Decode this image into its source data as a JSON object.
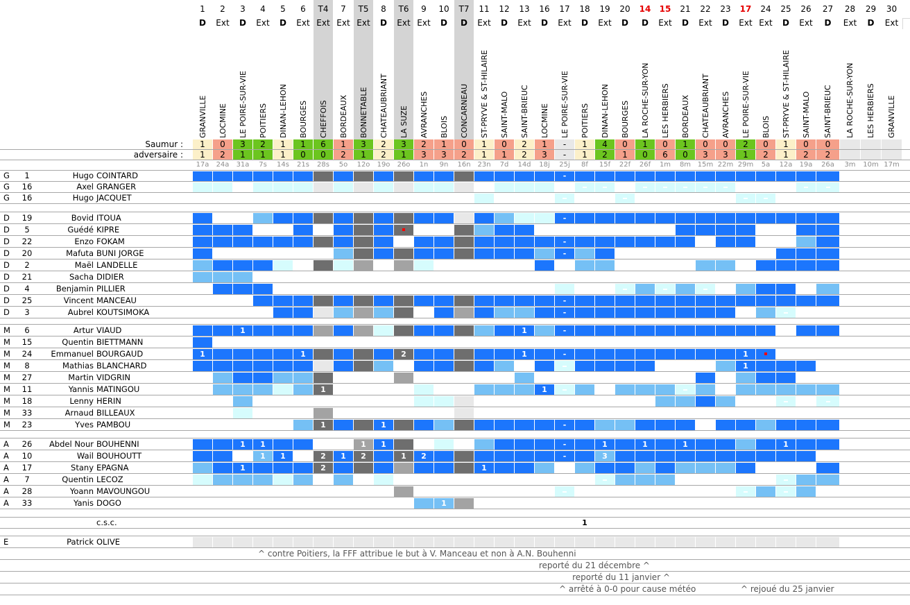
{
  "header": {
    "saumur_label": "Saumur :",
    "adversaire_label": "adversaire :"
  },
  "colors": {
    "cell": {
      "B": "#1c76fd",
      "L": "#75c0f5",
      "C": "#d6fcfd",
      "c": "#d6fcfd",
      "G": "#6e6e6e",
      "M": "#a3a3a3",
      "E": "#e8e8e8",
      ".": "#ffffff"
    },
    "result": {
      "win": "#6cc51f",
      "draw": "#fcf0c9",
      "loss": "#f5a08a",
      "none": "#e8e8e8"
    },
    "cup_header": "#d4d4d4",
    "highlight_number": "#e60000"
  },
  "matches": [
    {
      "number": "1",
      "venue": "D",
      "opponent": "GRANVILLE",
      "saumur": "1",
      "adversaire": "1",
      "result": "draw",
      "date": "17a"
    },
    {
      "number": "2",
      "venue": "Ext",
      "opponent": "LOCMINE",
      "saumur": "0",
      "adversaire": "2",
      "result": "loss",
      "date": "24a"
    },
    {
      "number": "3",
      "venue": "D",
      "opponent": "LE POIRE-SUR-VIE",
      "saumur": "3",
      "adversaire": "1",
      "result": "win",
      "date": "31a"
    },
    {
      "number": "4",
      "venue": "Ext",
      "opponent": "POITIERS",
      "saumur": "2",
      "adversaire": "1",
      "result": "win",
      "date": "7s"
    },
    {
      "number": "5",
      "venue": "D",
      "opponent": "DINAN-LEHON",
      "saumur": "1",
      "adversaire": "1",
      "result": "draw",
      "date": "14s"
    },
    {
      "number": "6",
      "venue": "Ext",
      "opponent": "BOURGES",
      "saumur": "1",
      "adversaire": "0",
      "result": "win",
      "date": "21s"
    },
    {
      "number": "T4",
      "venue": "Ext",
      "opponent": "CHEFFOIS",
      "saumur": "6",
      "adversaire": "0",
      "result": "win",
      "date": "28s",
      "cup": true
    },
    {
      "number": "7",
      "venue": "Ext",
      "opponent": "BORDEAUX",
      "saumur": "1",
      "adversaire": "2",
      "result": "loss",
      "date": "5o"
    },
    {
      "number": "T5",
      "venue": "Ext",
      "opponent": "BONNETABLE",
      "saumur": "3",
      "adversaire": "1",
      "result": "win",
      "date": "12o",
      "cup": true
    },
    {
      "number": "8",
      "venue": "D",
      "opponent": "CHATEAUBRIANT",
      "saumur": "2",
      "adversaire": "2",
      "result": "draw",
      "date": "19o"
    },
    {
      "number": "T6",
      "venue": "Ext",
      "opponent": "LA SUZE",
      "saumur": "3",
      "adversaire": "1",
      "result": "win",
      "date": "26o",
      "cup": true
    },
    {
      "number": "9",
      "venue": "Ext",
      "opponent": "AVRANCHES",
      "saumur": "2",
      "adversaire": "3",
      "result": "loss",
      "date": "1n"
    },
    {
      "number": "10",
      "venue": "D",
      "opponent": "BLOIS",
      "saumur": "1",
      "adversaire": "3",
      "result": "loss",
      "date": "9n"
    },
    {
      "number": "T7",
      "venue": "D",
      "opponent": "CONCARNEAU",
      "saumur": "0",
      "adversaire": "2",
      "result": "loss",
      "date": "16n",
      "cup": true
    },
    {
      "number": "11",
      "venue": "Ext",
      "opponent": "ST-PRYVE & ST-HILAIRE",
      "saumur": "1",
      "adversaire": "1",
      "result": "draw",
      "date": "23n"
    },
    {
      "number": "12",
      "venue": "D",
      "opponent": "SAINT-MALO",
      "saumur": "0",
      "adversaire": "1",
      "result": "loss",
      "date": "7d"
    },
    {
      "number": "13",
      "venue": "Ext",
      "opponent": "SAINT-BRIEUC",
      "saumur": "2",
      "adversaire": "2",
      "result": "draw",
      "date": "14d"
    },
    {
      "number": "16",
      "venue": "D",
      "opponent": "LOCMINE",
      "saumur": "1",
      "adversaire": "3",
      "result": "loss",
      "date": "18j"
    },
    {
      "number": "17",
      "venue": "Ext",
      "opponent": "LE POIRE-SUR-VIE",
      "saumur": "-",
      "adversaire": "-",
      "result": "none",
      "date": "25j"
    },
    {
      "number": "18",
      "venue": "D",
      "opponent": "POITIERS",
      "saumur": "1",
      "adversaire": "1",
      "result": "draw",
      "date": "8f"
    },
    {
      "number": "19",
      "venue": "Ext",
      "opponent": "DINAN-LEHON",
      "saumur": "4",
      "adversaire": "2",
      "result": "win",
      "date": "15f"
    },
    {
      "number": "20",
      "venue": "D",
      "opponent": "BOURGES",
      "saumur": "0",
      "adversaire": "1",
      "result": "loss",
      "date": "22f"
    },
    {
      "number": "14",
      "venue": "D",
      "opponent": "LA ROCHE-SUR-YON",
      "saumur": "1",
      "adversaire": "0",
      "result": "win",
      "date": "26f",
      "highlight": true
    },
    {
      "number": "15",
      "venue": "Ext",
      "opponent": "LES HERBIERS",
      "saumur": "0",
      "adversaire": "6",
      "result": "loss",
      "date": "1m",
      "highlight": true
    },
    {
      "number": "21",
      "venue": "D",
      "opponent": "BORDEAUX",
      "saumur": "1",
      "adversaire": "0",
      "result": "win",
      "date": "8m"
    },
    {
      "number": "22",
      "venue": "Ext",
      "opponent": "CHATEAUBRIANT",
      "saumur": "0",
      "adversaire": "3",
      "result": "loss",
      "date": "15m"
    },
    {
      "number": "23",
      "venue": "D",
      "opponent": "AVRANCHES",
      "saumur": "0",
      "adversaire": "3",
      "result": "loss",
      "date": "22m"
    },
    {
      "number": "17",
      "venue": "Ext",
      "opponent": "LE POIRE-SUR-VIE",
      "saumur": "2",
      "adversaire": "1",
      "result": "win",
      "date": "29m",
      "highlight": true
    },
    {
      "number": "24",
      "venue": "Ext",
      "opponent": "BLOIS",
      "saumur": "0",
      "adversaire": "2",
      "result": "loss",
      "date": "5a"
    },
    {
      "number": "25",
      "venue": "D",
      "opponent": "ST-PRYVE & ST-HILAIRE",
      "saumur": "1",
      "adversaire": "1",
      "result": "draw",
      "date": "12a"
    },
    {
      "number": "26",
      "venue": "Ext",
      "opponent": "SAINT-MALO",
      "saumur": "0",
      "adversaire": "2",
      "result": "loss",
      "date": "19a"
    },
    {
      "number": "27",
      "venue": "D",
      "opponent": "SAINT-BRIEUC",
      "saumur": "0",
      "adversaire": "2",
      "result": "loss",
      "date": "26a"
    },
    {
      "number": "28",
      "venue": "Ext",
      "opponent": "LA ROCHE-SUR-YON",
      "saumur": "",
      "adversaire": "",
      "result": "none",
      "date": "3m"
    },
    {
      "number": "29",
      "venue": "D",
      "opponent": "LES HERBIERS",
      "saumur": "",
      "adversaire": "",
      "result": "none",
      "date": "10m"
    },
    {
      "number": "30",
      "venue": "Ext",
      "opponent": "GRANVILLE",
      "saumur": "",
      "adversaire": "",
      "result": "none",
      "date": "17m"
    }
  ],
  "squad": {
    "sections": [
      {
        "players": [
          {
            "pos": "G",
            "num": "1",
            "first": "Hugo",
            "last": "COINTARD",
            "cells": "BBBBB BGBGB GBBGB BBBBB BBBBB BBBBB BB...",
            "marks": {
              "18": "-"
            }
          },
          {
            "pos": "G",
            "num": "16",
            "first": "Axel",
            "last": "GRANGER",
            "cells": "CC.CC CECEC ECCE. CCC.c c.ccc cc... cc..."
          },
          {
            "pos": "G",
            "num": "16",
            "first": "Hugo",
            "last": "JACQUET",
            "cells": "..... ..... ....C ...c. .c... ..cc. ....."
          }
        ]
      },
      {
        "players": [
          {
            "pos": "D",
            "num": "19",
            "first": "Bovid",
            "last": "ITOUA",
            "cells": "B..LB BGBGB GBBEB LCCBB BBBBB BBBBB BB...",
            "marks": {
              "18": "-"
            }
          },
          {
            "pos": "D",
            "num": "5",
            "first": "Guédé",
            "last": "KIPRE",
            "cells": "BBB.. B.BGB G..GL BB... ....B BBB.. BB...",
            "red_cards": [
              10
            ]
          },
          {
            "pos": "D",
            "num": "22",
            "first": "Enzo",
            "last": "FOKAM",
            "cells": "BBBBB BGBGB .BBGB BBBBB BBBBB .BB.. LB...",
            "marks": {
              "18": "-"
            }
          },
          {
            "pos": "D",
            "num": "20",
            "first": "Mafuta",
            "last": "BUNI JORGE",
            "cells": "B.... ..LGB GBBGB BBLBL B.... ....B BB...",
            "marks": {
              "18": "-"
            }
          },
          {
            "pos": "D",
            "num": "2",
            "first": "Maël",
            "last": "LANDELLE",
            "cells": "LBBBC .GCM. MC... ..B.L L.... LL.BB BB..."
          },
          {
            "pos": "D",
            "num": "21",
            "first": "Sacha",
            "last": "DIDIER",
            "cells": "LLL.. ..... ..... ..... ..... ..... ....."
          },
          {
            "pos": "D",
            "num": "4",
            "first": "Benjamin",
            "last": "PILLIER",
            "cells": ".BBB. ..... ..... ...C. .cLcL c.LBB .L..."
          },
          {
            "pos": "D",
            "num": "25",
            "first": "Vincent",
            "last": "MANCEAU",
            "cells": "...BB BGBGB GBBGB BBBBB BBBBB BBBBB BB...",
            "marks": {
              "18": "-"
            }
          },
          {
            "pos": "D",
            "num": "3",
            "first": "Aubrel",
            "last": "KOUTSIMOKA",
            "cells": "....B BELML G.BMB LLBBB BBBBB BB.Lc .....",
            "marks": {
              "18": "-"
            }
          }
        ]
      },
      {
        "players": [
          {
            "pos": "M",
            "num": "6",
            "first": "Artur",
            "last": "VIAUD",
            "cells": "BBBBB BMBMC GBBGL BBLBB BBBBB BBBB. BB...",
            "marks": {
              "2": "1",
              "16": "1",
              "18": "-"
            }
          },
          {
            "pos": "M",
            "num": "15",
            "first": "Quentin",
            "last": "BIETTMANN",
            "cells": "B.... ..... ..... ..... ..... ..... ....."
          },
          {
            "pos": "M",
            "num": "24",
            "first": "Emmanuel",
            "last": "BOURGAUD",
            "cells": "BBBBB BGBGB GBBGB BBBBB BBBBB BBBB. .....",
            "marks": {
              "0": "1",
              "5": "1",
              "10": "2",
              "16": "1",
              "18": "-",
              "27": "1"
            },
            "red_cards": [
              28
            ]
          },
          {
            "pos": "M",
            "num": "8",
            "first": "Mathias",
            "last": "BLANCHARD",
            "cells": "BBBBB BEBGL .BBGB L.BcB BBB.. .LBBB B....",
            "marks": {
              "27": "1"
            }
          },
          {
            "pos": "M",
            "num": "27",
            "first": "Martin",
            "last": "VIDGRIN",
            "cells": ".LBBL LG... M.... .L... ..... B.LBB ....."
          },
          {
            "pos": "M",
            "num": "11",
            "first": "Yannis",
            "last": "MATINGOU",
            "cells": ".LLLC LG... .C..L LLBcL .LLLc L.LLL LL...",
            "marks": {
              "6": "1",
              "17": "1"
            }
          },
          {
            "pos": "M",
            "num": "18",
            "first": "Lenny",
            "last": "HERIN",
            "cells": "..L.. ..... .CCE. ..... ...LL BL..c .c..."
          },
          {
            "pos": "M",
            "num": "33",
            "first": "Arnaud",
            "last": "BILLEAUX",
            "cells": "..C.. .M... ...E. ..... ..... ..... ....."
          },
          {
            "pos": "M",
            "num": "23",
            "first": "Yves",
            "last": "PAMBOU",
            "cells": "..... LGBGB GBLGB BBBBB LLBBB .BBLB BB...",
            "marks": {
              "6": "1",
              "9": "1",
              "18": "-"
            }
          }
        ]
      },
      {
        "players": [
          {
            "pos": "A",
            "num": "26",
            "first": "Abdel Nour",
            "last": "BOUHENNI",
            "cells": "BBBBB B..MB G.C.L BBBBB BBBBB BBLBB BB...",
            "marks": {
              "2": "1",
              "3": "1",
              "8": "1",
              "9": "1",
              "18": "-",
              "20": "1",
              "22": "1",
              "24": "1",
              "29": "1"
            }
          },
          {
            "pos": "A",
            "num": "10",
            "first": "Wail",
            "last": "BOUHOUTT",
            "cells": "BB.LB .GBGB GBBGB BBBBB LBBBB BBBBB B....",
            "marks": {
              "3": "1",
              "4": "1",
              "6": "2",
              "7": "1",
              "8": "2",
              "10": "1",
              "11": "2",
              "18": "-",
              "20": "3"
            }
          },
          {
            "pos": "A",
            "num": "17",
            "first": "Stany",
            "last": "EPAGNA",
            "cells": "LBBBB BGBGB MBBGB BBL.L BBLBL LLB.. .B...",
            "marks": {
              "2": "1",
              "6": "2",
              "14": "1"
            }
          },
          {
            "pos": "A",
            "num": "7",
            "first": "Quentin",
            "last": "LECOZ",
            "cells": "CLLLC L.L.C ..... ..... cLLL. ....c LL..."
          },
          {
            "pos": "A",
            "num": "28",
            "first": "Yoann",
            "last": "MAVOUNGOU",
            "cells": "..... ..... M.... ...c. ..... ..cLc L...."
          },
          {
            "pos": "A",
            "num": "33",
            "first": "Yanis",
            "last": "DOGO",
            "cells": "..... ..... .LLM. ..... ..... ..... .....",
            "marks": {
              "12": "1"
            }
          }
        ]
      }
    ]
  },
  "csc": {
    "label": "c.s.c.",
    "marks": {
      "19": "1"
    }
  },
  "staff": [
    {
      "pos": "E",
      "num": "",
      "first": "Patrick",
      "last": "OLIVE",
      "cells": "EEEEE EEEEE EEEEE EEEEE EEEEE EEEEE EE..."
    }
  ],
  "notes": [
    [
      "^ contre Poitiers, la FFF attribue le but à V. Manceau et non à A.N. Bouhenni"
    ],
    [
      "reporté du 21 décembre ^"
    ],
    [
      "reporté du 11 janvier ^"
    ],
    [
      "^ arrêté à 0-0 pour cause météo",
      "^ rejoué du 25 janvier"
    ]
  ]
}
